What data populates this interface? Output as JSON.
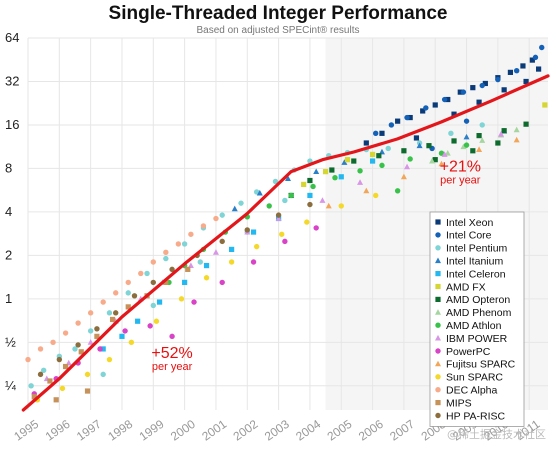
{
  "chart_data": {
    "type": "scatter",
    "title": "Single-Threaded Integer Performance",
    "subtitle": "Based on adjusted SPECint® results",
    "xlabel": "",
    "ylabel": "",
    "scale_y": "log2",
    "ylim": [
      0.17,
      64
    ],
    "xlim": [
      1995,
      2011.6
    ],
    "y_ticks": [
      {
        "value": 0.25,
        "label": "¼"
      },
      {
        "value": 0.5,
        "label": "½"
      },
      {
        "value": 1,
        "label": "1"
      },
      {
        "value": 2,
        "label": "2"
      },
      {
        "value": 4,
        "label": "4"
      },
      {
        "value": 8,
        "label": "8"
      },
      {
        "value": 16,
        "label": "16"
      },
      {
        "value": 32,
        "label": "32"
      },
      {
        "value": 64,
        "label": "64"
      }
    ],
    "x_ticks": [
      "1995",
      "1996",
      "1997",
      "1998",
      "1999",
      "2000",
      "2001",
      "2002",
      "2003",
      "2004",
      "2005",
      "2006",
      "2007",
      "2008",
      "2009",
      "2010",
      "2011"
    ],
    "grid": true,
    "legend_position": "right",
    "series": [
      {
        "name": "Intel Xeon",
        "color": "#0b3a78",
        "marker": "square",
        "points": [
          [
            2005.8,
            12
          ],
          [
            2006.3,
            14
          ],
          [
            2006.8,
            17
          ],
          [
            2007.2,
            18
          ],
          [
            2007.6,
            20
          ],
          [
            2008.0,
            22
          ],
          [
            2008.4,
            24
          ],
          [
            2008.8,
            27
          ],
          [
            2009.2,
            29
          ],
          [
            2009.6,
            31
          ],
          [
            2010.0,
            34
          ],
          [
            2010.4,
            37
          ],
          [
            2010.8,
            41
          ],
          [
            2011.1,
            45
          ],
          [
            2007.4,
            13
          ],
          [
            2008.6,
            19
          ],
          [
            2009.4,
            23
          ],
          [
            2010.2,
            28
          ],
          [
            2010.9,
            32
          ],
          [
            2011.3,
            39
          ]
        ]
      },
      {
        "name": "Intel Core",
        "color": "#1461b8",
        "marker": "circle",
        "points": [
          [
            2006.1,
            14
          ],
          [
            2006.6,
            16
          ],
          [
            2007.1,
            18
          ],
          [
            2007.7,
            21
          ],
          [
            2008.3,
            24
          ],
          [
            2008.9,
            27
          ],
          [
            2009.5,
            30
          ],
          [
            2010.0,
            33
          ],
          [
            2010.6,
            38
          ],
          [
            2011.2,
            47
          ],
          [
            2011.4,
            55
          ],
          [
            2007.9,
            11
          ],
          [
            2009.0,
            17
          ]
        ]
      },
      {
        "name": "Intel Pentium",
        "color": "#7fd4d6",
        "marker": "circle",
        "points": [
          [
            1995.1,
            0.25
          ],
          [
            1995.5,
            0.32
          ],
          [
            1996.0,
            0.4
          ],
          [
            1996.5,
            0.45
          ],
          [
            1997.0,
            0.6
          ],
          [
            1997.6,
            0.8
          ],
          [
            1998.2,
            1.1
          ],
          [
            1998.8,
            1.5
          ],
          [
            1999.4,
            1.9
          ],
          [
            2000.0,
            2.4
          ],
          [
            2000.6,
            3.1
          ],
          [
            2001.2,
            3.8
          ],
          [
            2001.8,
            4.6
          ],
          [
            2002.3,
            5.5
          ],
          [
            2002.9,
            6.5
          ],
          [
            2003.5,
            7.8
          ],
          [
            2004.0,
            9
          ],
          [
            2004.6,
            9.8
          ],
          [
            2005.2,
            10.3
          ],
          [
            2005.8,
            10.8
          ],
          [
            2006.5,
            11
          ],
          [
            2007.5,
            12
          ],
          [
            2008.5,
            14
          ],
          [
            2009.5,
            16
          ],
          [
            1997.4,
            0.3
          ],
          [
            1999.0,
            0.9
          ],
          [
            2000.5,
            1.8
          ],
          [
            2002.0,
            2.9
          ],
          [
            2003.2,
            4.8
          ]
        ]
      },
      {
        "name": "Intel Itanium",
        "color": "#2a7fc9",
        "marker": "triangle",
        "points": [
          [
            2001.6,
            4.2
          ],
          [
            2002.4,
            5.4
          ],
          [
            2003.3,
            6.8
          ],
          [
            2004.2,
            7.6
          ],
          [
            2005.1,
            8.8
          ],
          [
            2006.3,
            10.4
          ],
          [
            2007.5,
            11.5
          ],
          [
            2009.0,
            13.2
          ],
          [
            2010.2,
            14.5
          ]
        ]
      },
      {
        "name": "Intel Celeron",
        "color": "#23b8f0",
        "marker": "square",
        "points": [
          [
            1997.4,
            0.45
          ],
          [
            1998.0,
            0.55
          ],
          [
            1998.5,
            0.7
          ],
          [
            1999.2,
            0.95
          ],
          [
            2000.0,
            1.3
          ],
          [
            2000.7,
            1.7
          ],
          [
            2001.5,
            2.2
          ],
          [
            2002.2,
            2.9
          ],
          [
            2003.0,
            3.6
          ],
          [
            2004.0,
            5.2
          ],
          [
            2005.0,
            7
          ],
          [
            2006.0,
            9
          ]
        ]
      },
      {
        "name": "AMD FX",
        "color": "#d6d633",
        "marker": "square",
        "points": [
          [
            2003.8,
            6.2
          ],
          [
            2004.5,
            7.6
          ],
          [
            2005.2,
            9.2
          ],
          [
            2006.0,
            10
          ],
          [
            2011.5,
            22
          ]
        ]
      },
      {
        "name": "AMD Opteron",
        "color": "#0e6b2e",
        "marker": "square",
        "points": [
          [
            2003.4,
            5.2
          ],
          [
            2004.0,
            6.6
          ],
          [
            2004.7,
            7.8
          ],
          [
            2005.4,
            9
          ],
          [
            2006.2,
            9.8
          ],
          [
            2007.0,
            10.6
          ],
          [
            2007.8,
            11.5
          ],
          [
            2008.6,
            12.4
          ],
          [
            2009.4,
            13.5
          ],
          [
            2010.2,
            14.6
          ],
          [
            2010.9,
            16.2
          ],
          [
            2008.0,
            9.2
          ],
          [
            2009.2,
            10.6
          ],
          [
            2010.0,
            12
          ]
        ]
      },
      {
        "name": "AMD Phenom",
        "color": "#a6d6a0",
        "marker": "triangle",
        "points": [
          [
            2007.9,
            9
          ],
          [
            2008.4,
            10.2
          ],
          [
            2008.9,
            11.3
          ],
          [
            2009.5,
            12.5
          ],
          [
            2010.1,
            13.6
          ],
          [
            2010.6,
            14.8
          ]
        ]
      },
      {
        "name": "AMD Athlon",
        "color": "#38c24a",
        "marker": "circle",
        "points": [
          [
            1999.5,
            1.3
          ],
          [
            2000.0,
            1.7
          ],
          [
            2000.6,
            2.2
          ],
          [
            2001.3,
            2.9
          ],
          [
            2002.0,
            3.7
          ],
          [
            2002.7,
            4.4
          ],
          [
            2003.4,
            5.2
          ],
          [
            2004.1,
            6
          ],
          [
            2004.8,
            6.9
          ],
          [
            2005.6,
            7.7
          ],
          [
            2006.3,
            8.4
          ],
          [
            2007.2,
            9.3
          ],
          [
            2008.2,
            10.2
          ],
          [
            2009.0,
            11.6
          ],
          [
            2006.8,
            5.6
          ]
        ]
      },
      {
        "name": "IBM POWER",
        "color": "#d996e6",
        "marker": "triangle",
        "points": [
          [
            1995.6,
            0.28
          ],
          [
            1996.3,
            0.36
          ],
          [
            1997.0,
            0.5
          ],
          [
            1997.8,
            0.7
          ],
          [
            1998.6,
            1.0
          ],
          [
            1999.3,
            1.3
          ],
          [
            2000.2,
            1.7
          ],
          [
            2001.0,
            2.1
          ],
          [
            2002.0,
            2.9
          ],
          [
            2003.0,
            3.6
          ],
          [
            2004.4,
            4.8
          ],
          [
            2005.6,
            6.4
          ],
          [
            2007.1,
            8.2
          ],
          [
            2008.3,
            10
          ],
          [
            2010.1,
            13.8
          ]
        ]
      },
      {
        "name": "PowerPC",
        "color": "#d943c7",
        "marker": "circle",
        "points": [
          [
            1995.2,
            0.22
          ],
          [
            1995.9,
            0.28
          ],
          [
            1996.6,
            0.36
          ],
          [
            1997.3,
            0.45
          ],
          [
            1998.1,
            0.6
          ],
          [
            1998.9,
            0.65
          ],
          [
            1999.6,
            0.55
          ],
          [
            2000.3,
            0.95
          ],
          [
            2001.2,
            1.3
          ],
          [
            2002.2,
            1.8
          ],
          [
            2003.2,
            2.5
          ],
          [
            2004.2,
            3.1
          ]
        ]
      },
      {
        "name": "Fujitsu SPARC",
        "color": "#f2a659",
        "marker": "triangle",
        "points": [
          [
            2004.6,
            4.4
          ],
          [
            2005.8,
            5.6
          ],
          [
            2007.0,
            7.0
          ],
          [
            2008.2,
            8.6
          ],
          [
            2009.4,
            10.8
          ],
          [
            2010.6,
            12.6
          ]
        ]
      },
      {
        "name": "Sun SPARC",
        "color": "#f5d92a",
        "marker": "circle",
        "points": [
          [
            1995.3,
            0.2
          ],
          [
            1996.1,
            0.24
          ],
          [
            1996.9,
            0.3
          ],
          [
            1997.6,
            0.38
          ],
          [
            1998.3,
            0.5
          ],
          [
            1999.1,
            0.7
          ],
          [
            1999.9,
            1.0
          ],
          [
            2000.7,
            1.4
          ],
          [
            2001.5,
            1.8
          ],
          [
            2002.3,
            2.3
          ],
          [
            2003.1,
            2.8
          ],
          [
            2003.9,
            3.4
          ],
          [
            2005.0,
            4.4
          ],
          [
            2006.1,
            5.2
          ]
        ]
      },
      {
        "name": "DEC Alpha",
        "color": "#f7ab8a",
        "marker": "circle",
        "points": [
          [
            1995.0,
            0.38
          ],
          [
            1995.4,
            0.45
          ],
          [
            1995.8,
            0.5
          ],
          [
            1996.2,
            0.58
          ],
          [
            1996.6,
            0.68
          ],
          [
            1997.0,
            0.8
          ],
          [
            1997.4,
            0.95
          ],
          [
            1997.8,
            1.1
          ],
          [
            1998.2,
            1.3
          ],
          [
            1998.6,
            1.5
          ],
          [
            1999.0,
            1.8
          ],
          [
            1999.4,
            2.1
          ],
          [
            1999.8,
            2.4
          ],
          [
            2000.2,
            2.8
          ],
          [
            2000.6,
            3.2
          ],
          [
            2001.0,
            3.6
          ]
        ]
      },
      {
        "name": "MIPS",
        "color": "#c6925a",
        "marker": "square",
        "points": [
          [
            1995.2,
            0.21
          ],
          [
            1995.7,
            0.27
          ],
          [
            1996.2,
            0.34
          ],
          [
            1996.7,
            0.43
          ],
          [
            1997.2,
            0.55
          ],
          [
            1997.7,
            0.72
          ],
          [
            1998.2,
            0.88
          ],
          [
            1998.8,
            1.05
          ],
          [
            1999.4,
            1.3
          ],
          [
            2000.1,
            1.6
          ],
          [
            1995.9,
            0.2
          ],
          [
            1996.9,
            0.23
          ]
        ]
      },
      {
        "name": "HP PA-RISC",
        "color": "#8c6d3d",
        "marker": "circle",
        "points": [
          [
            1995.4,
            0.3
          ],
          [
            1996.0,
            0.38
          ],
          [
            1996.6,
            0.48
          ],
          [
            1997.2,
            0.62
          ],
          [
            1997.8,
            0.8
          ],
          [
            1998.4,
            1.05
          ],
          [
            1999.0,
            1.3
          ],
          [
            1999.6,
            1.6
          ],
          [
            2000.4,
            2.0
          ],
          [
            2001.2,
            2.5
          ],
          [
            2002.0,
            3.0
          ],
          [
            2003.0,
            3.8
          ],
          [
            2004.0,
            4.5
          ]
        ]
      }
    ],
    "trend_line": {
      "color": "#e3171b",
      "points": [
        [
          1994.85,
          0.17
        ],
        [
          1996,
          0.28
        ],
        [
          1998,
          0.75
        ],
        [
          2000,
          1.75
        ],
        [
          2002,
          3.9
        ],
        [
          2003.4,
          7.6
        ],
        [
          2004.4,
          9.2
        ],
        [
          2005.4,
          10.4
        ],
        [
          2006.8,
          12.8
        ],
        [
          2008.2,
          16.8
        ],
        [
          2009.8,
          23.5
        ],
        [
          2011.6,
          35
        ]
      ]
    },
    "annotations": [
      {
        "text": "+52%",
        "sub": "per year",
        "x": 1999.6,
        "y": 0.39
      },
      {
        "text": "+21%",
        "sub": "per year",
        "x": 2008.8,
        "y": 7.6
      }
    ]
  },
  "watermark": "@稀土掘金技术社区"
}
